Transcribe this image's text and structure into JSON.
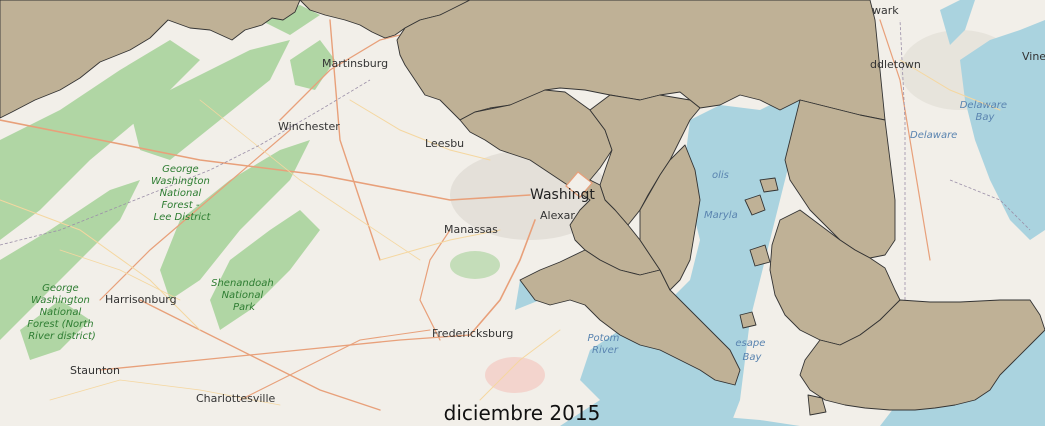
{
  "map": {
    "caption": "diciembre 2015",
    "colors": {
      "land": "#f2efe9",
      "forest": "#a9d39c",
      "water": "#aad3df",
      "overlay": "#bfb196",
      "overlay_border": "#333333",
      "road_major": "#e8a07a",
      "road_minor": "#f5d7a0",
      "urban": "#e0dcd4"
    },
    "places": [
      {
        "key": "martinsburg",
        "label": "Martinsburg"
      },
      {
        "key": "winchester",
        "label": "Winchester"
      },
      {
        "key": "leesburg",
        "label": "Leesbu"
      },
      {
        "key": "washington",
        "label": "Washingt"
      },
      {
        "key": "alexandria",
        "label": "Alexar"
      },
      {
        "key": "manassas",
        "label": "Manassas"
      },
      {
        "key": "fredericksburg",
        "label": "Fredericksburg"
      },
      {
        "key": "harrisonburg",
        "label": "Harrisonburg"
      },
      {
        "key": "staunton",
        "label": "Staunton"
      },
      {
        "key": "charlottesville",
        "label": "Charlottesville"
      },
      {
        "key": "middletown",
        "label": "ddletown"
      },
      {
        "key": "newark",
        "label": "wark"
      },
      {
        "key": "vineland",
        "label": "Vine"
      }
    ],
    "forest_labels": [
      {
        "key": "gwnf_lee",
        "lines": [
          "George",
          "Washington",
          "National",
          "Forest -",
          "Lee District"
        ]
      },
      {
        "key": "shenandoah",
        "lines": [
          "Shenandoah",
          "National",
          "Park"
        ]
      },
      {
        "key": "gwnf_north",
        "lines": [
          "George",
          "Washington",
          "National",
          "Forest (North",
          "River district)"
        ]
      }
    ],
    "water_labels": [
      {
        "key": "delaware_bay",
        "lines": [
          "Delaware",
          "Bay"
        ]
      },
      {
        "key": "delaware",
        "lines": [
          "Delaware"
        ]
      },
      {
        "key": "maryland",
        "lines": [
          "Maryla"
        ]
      },
      {
        "key": "chesapeake",
        "lines": [
          "esape",
          "Bay"
        ]
      },
      {
        "key": "potomac",
        "lines": [
          "Potom",
          "River"
        ]
      },
      {
        "key": "lis",
        "lines": [
          "olis"
        ]
      }
    ]
  }
}
